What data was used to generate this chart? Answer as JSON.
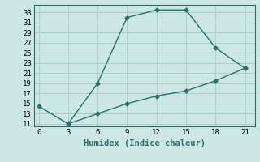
{
  "xlabel": "Humidex (Indice chaleur)",
  "background_color": "#cce8e4",
  "grid_color": "#aacfcb",
  "line_color": "#2d6e67",
  "line1_x": [
    0,
    3,
    6,
    9,
    12,
    15,
    18,
    21
  ],
  "line1_y": [
    14.5,
    11,
    19,
    32,
    33.5,
    33.5,
    26,
    22
  ],
  "line2_x": [
    3,
    6,
    9,
    12,
    15,
    18,
    21
  ],
  "line2_y": [
    11,
    13,
    15,
    16.5,
    17.5,
    19.5,
    22
  ],
  "xlim": [
    -0.5,
    22
  ],
  "ylim": [
    10.5,
    34.5
  ],
  "xticks": [
    0,
    3,
    6,
    9,
    12,
    15,
    18,
    21
  ],
  "yticks": [
    11,
    13,
    15,
    17,
    19,
    21,
    23,
    25,
    27,
    29,
    31,
    33
  ],
  "tick_fontsize": 6.5,
  "xlabel_fontsize": 7.5,
  "marker": "D",
  "markersize": 2.5,
  "linewidth": 1.0
}
